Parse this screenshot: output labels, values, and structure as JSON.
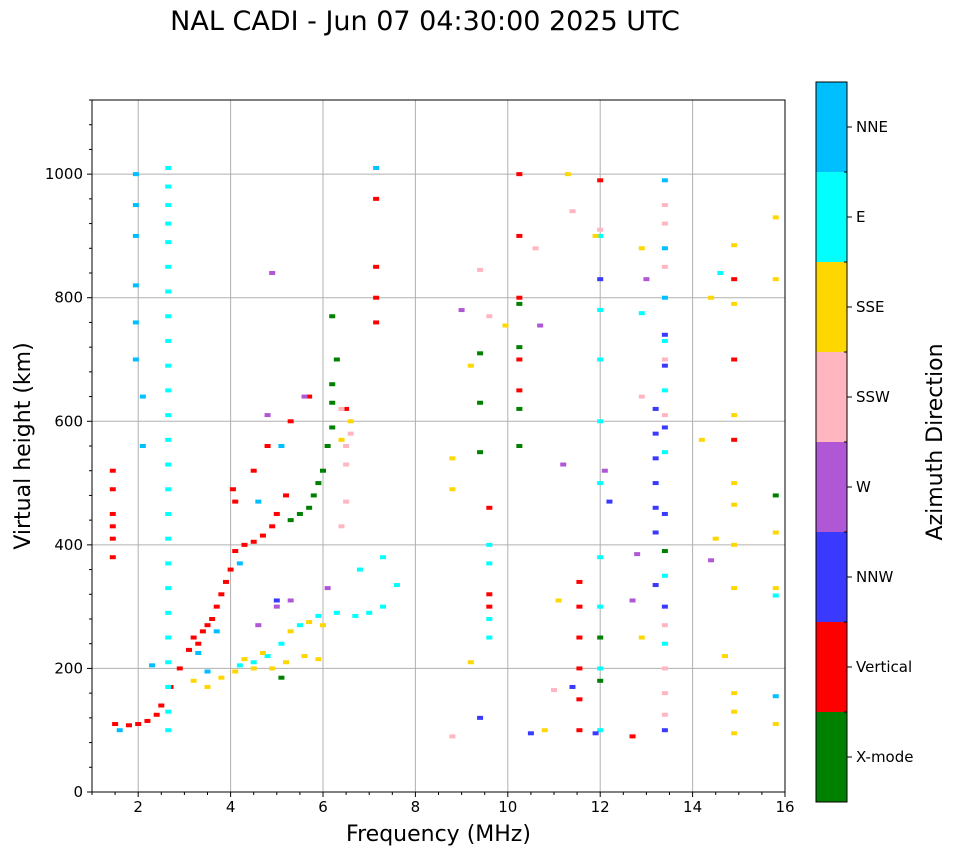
{
  "chart_data": {
    "type": "scatter",
    "title": "NAL CADI - Jun 07 04:30:00 2025 UTC",
    "xlabel": "Frequency (MHz)",
    "ylabel": "Virtual height (km)",
    "xlim": [
      1,
      16
    ],
    "ylim": [
      0,
      1120
    ],
    "xticks": [
      2,
      4,
      6,
      8,
      10,
      12,
      14,
      16
    ],
    "yticks": [
      0,
      200,
      400,
      600,
      800,
      1000
    ],
    "grid": true,
    "colorbar": {
      "label": "Azimuth Direction",
      "categories": [
        {
          "name": "X-mode",
          "color": "#008000"
        },
        {
          "name": "Vertical",
          "color": "#ff0000"
        },
        {
          "name": "NNW",
          "color": "#3a3aff"
        },
        {
          "name": "W",
          "color": "#b057d6"
        },
        {
          "name": "SSW",
          "color": "#ffb6c1"
        },
        {
          "name": "SSE",
          "color": "#ffd700"
        },
        {
          "name": "E",
          "color": "#00ffff"
        },
        {
          "name": "NNE",
          "color": "#00bfff"
        }
      ]
    },
    "series": [
      {
        "name": "Vertical",
        "points": [
          [
            1.45,
            520
          ],
          [
            1.45,
            490
          ],
          [
            1.45,
            450
          ],
          [
            1.45,
            430
          ],
          [
            1.45,
            410
          ],
          [
            1.45,
            380
          ],
          [
            1.5,
            110
          ],
          [
            1.8,
            108
          ],
          [
            2.0,
            110
          ],
          [
            2.2,
            115
          ],
          [
            2.4,
            125
          ],
          [
            2.5,
            140
          ],
          [
            2.7,
            170
          ],
          [
            2.9,
            200
          ],
          [
            3.1,
            230
          ],
          [
            3.2,
            250
          ],
          [
            3.3,
            240
          ],
          [
            3.4,
            260
          ],
          [
            3.5,
            270
          ],
          [
            3.6,
            280
          ],
          [
            3.7,
            300
          ],
          [
            3.8,
            320
          ],
          [
            3.9,
            340
          ],
          [
            4.0,
            360
          ],
          [
            4.1,
            390
          ],
          [
            4.3,
            400
          ],
          [
            4.5,
            405
          ],
          [
            4.7,
            415
          ],
          [
            4.9,
            430
          ],
          [
            5.0,
            450
          ],
          [
            5.2,
            480
          ],
          [
            4.05,
            490
          ],
          [
            4.1,
            470
          ],
          [
            4.5,
            520
          ],
          [
            4.8,
            560
          ],
          [
            5.3,
            600
          ],
          [
            5.7,
            640
          ],
          [
            6.5,
            620
          ],
          [
            7.15,
            960
          ],
          [
            7.15,
            850
          ],
          [
            7.15,
            800
          ],
          [
            7.15,
            760
          ],
          [
            9.6,
            460
          ],
          [
            9.6,
            320
          ],
          [
            9.6,
            300
          ],
          [
            10.25,
            1000
          ],
          [
            10.25,
            900
          ],
          [
            10.25,
            800
          ],
          [
            10.25,
            700
          ],
          [
            10.25,
            650
          ],
          [
            11.55,
            340
          ],
          [
            11.55,
            300
          ],
          [
            11.55,
            250
          ],
          [
            11.55,
            200
          ],
          [
            11.55,
            150
          ],
          [
            11.55,
            100
          ],
          [
            12.7,
            90
          ],
          [
            14.9,
            830
          ],
          [
            14.9,
            700
          ],
          [
            14.9,
            570
          ],
          [
            12,
            990
          ]
        ]
      },
      {
        "name": "NNE",
        "points": [
          [
            1.95,
            1000
          ],
          [
            1.95,
            950
          ],
          [
            1.95,
            900
          ],
          [
            1.95,
            820
          ],
          [
            1.95,
            760
          ],
          [
            1.95,
            700
          ],
          [
            2.1,
            640
          ],
          [
            2.1,
            560
          ],
          [
            1.6,
            100
          ],
          [
            2.3,
            205
          ],
          [
            3.3,
            225
          ],
          [
            3.5,
            195
          ],
          [
            3.7,
            260
          ],
          [
            4.2,
            370
          ],
          [
            4.6,
            470
          ],
          [
            5.1,
            560
          ],
          [
            7.15,
            1010
          ],
          [
            13.4,
            990
          ],
          [
            13.4,
            880
          ],
          [
            13.4,
            800
          ],
          [
            15.8,
            155
          ]
        ]
      },
      {
        "name": "E",
        "points": [
          [
            2.65,
            1010
          ],
          [
            2.65,
            980
          ],
          [
            2.65,
            950
          ],
          [
            2.65,
            920
          ],
          [
            2.65,
            890
          ],
          [
            2.65,
            850
          ],
          [
            2.65,
            810
          ],
          [
            2.65,
            770
          ],
          [
            2.65,
            730
          ],
          [
            2.65,
            690
          ],
          [
            2.65,
            650
          ],
          [
            2.65,
            610
          ],
          [
            2.65,
            570
          ],
          [
            2.65,
            530
          ],
          [
            2.65,
            490
          ],
          [
            2.65,
            450
          ],
          [
            2.65,
            410
          ],
          [
            2.65,
            370
          ],
          [
            2.65,
            330
          ],
          [
            2.65,
            290
          ],
          [
            2.65,
            250
          ],
          [
            2.65,
            210
          ],
          [
            2.65,
            170
          ],
          [
            2.65,
            130
          ],
          [
            2.65,
            100
          ],
          [
            4.2,
            205
          ],
          [
            4.5,
            210
          ],
          [
            4.8,
            220
          ],
          [
            5.1,
            240
          ],
          [
            5.5,
            270
          ],
          [
            5.9,
            285
          ],
          [
            6.3,
            290
          ],
          [
            6.7,
            285
          ],
          [
            7.0,
            290
          ],
          [
            7.3,
            300
          ],
          [
            7.3,
            380
          ],
          [
            6.8,
            360
          ],
          [
            7.6,
            335
          ],
          [
            9.6,
            400
          ],
          [
            9.6,
            370
          ],
          [
            9.6,
            280
          ],
          [
            9.6,
            250
          ],
          [
            12.0,
            900
          ],
          [
            12.0,
            780
          ],
          [
            12.0,
            700
          ],
          [
            12.0,
            600
          ],
          [
            12.0,
            500
          ],
          [
            12.0,
            380
          ],
          [
            12.0,
            300
          ],
          [
            12.0,
            200
          ],
          [
            12.0,
            100
          ],
          [
            12.9,
            775
          ],
          [
            13.4,
            730
          ],
          [
            13.4,
            650
          ],
          [
            13.4,
            550
          ],
          [
            13.4,
            350
          ],
          [
            13.4,
            240
          ],
          [
            14.6,
            840
          ],
          [
            15.8,
            318
          ]
        ]
      },
      {
        "name": "SSE",
        "points": [
          [
            3.2,
            180
          ],
          [
            3.5,
            170
          ],
          [
            3.8,
            185
          ],
          [
            4.1,
            195
          ],
          [
            4.5,
            200
          ],
          [
            4.9,
            200
          ],
          [
            5.2,
            210
          ],
          [
            5.6,
            220
          ],
          [
            5.9,
            215
          ],
          [
            4.3,
            215
          ],
          [
            4.7,
            225
          ],
          [
            5.3,
            260
          ],
          [
            5.7,
            275
          ],
          [
            6.0,
            270
          ],
          [
            6.4,
            570
          ],
          [
            6.6,
            600
          ],
          [
            9.2,
            690
          ],
          [
            9.2,
            210
          ],
          [
            8.8,
            540
          ],
          [
            8.8,
            490
          ],
          [
            9.95,
            755
          ],
          [
            10.8,
            100
          ],
          [
            11.1,
            310
          ],
          [
            11.3,
            1000
          ],
          [
            11.9,
            900
          ],
          [
            12.9,
            880
          ],
          [
            12.9,
            250
          ],
          [
            14.4,
            800
          ],
          [
            14.2,
            570
          ],
          [
            14.5,
            410
          ],
          [
            14.7,
            220
          ],
          [
            14.9,
            885
          ],
          [
            14.9,
            790
          ],
          [
            14.9,
            610
          ],
          [
            14.9,
            500
          ],
          [
            14.9,
            465
          ],
          [
            14.9,
            400
          ],
          [
            14.9,
            330
          ],
          [
            14.9,
            160
          ],
          [
            14.9,
            130
          ],
          [
            14.9,
            95
          ],
          [
            15.8,
            930
          ],
          [
            15.8,
            830
          ],
          [
            15.8,
            420
          ],
          [
            15.8,
            330
          ],
          [
            15.8,
            110
          ]
        ]
      },
      {
        "name": "NNW",
        "points": [
          [
            5.0,
            310
          ],
          [
            9.4,
            120
          ],
          [
            10.5,
            95
          ],
          [
            11.4,
            170
          ],
          [
            11.9,
            95
          ],
          [
            13.2,
            620
          ],
          [
            13.2,
            580
          ],
          [
            13.2,
            540
          ],
          [
            13.2,
            500
          ],
          [
            13.2,
            460
          ],
          [
            13.2,
            420
          ],
          [
            13.4,
            740
          ],
          [
            13.4,
            690
          ],
          [
            13.4,
            590
          ],
          [
            13.4,
            450
          ],
          [
            13.4,
            300
          ],
          [
            13.4,
            100
          ],
          [
            12.0,
            830
          ],
          [
            12.2,
            470
          ],
          [
            13.2,
            335
          ]
        ]
      },
      {
        "name": "W",
        "points": [
          [
            5.0,
            300
          ],
          [
            5.3,
            310
          ],
          [
            6.1,
            330
          ],
          [
            4.9,
            840
          ],
          [
            4.6,
            270
          ],
          [
            5.6,
            640
          ],
          [
            4.8,
            610
          ],
          [
            10.7,
            755
          ],
          [
            11.2,
            530
          ],
          [
            12.1,
            520
          ],
          [
            12.7,
            310
          ],
          [
            12.8,
            385
          ],
          [
            13.0,
            830
          ],
          [
            14.4,
            375
          ],
          [
            9.0,
            780
          ]
        ]
      },
      {
        "name": "SSW",
        "points": [
          [
            6.5,
            560
          ],
          [
            6.5,
            530
          ],
          [
            6.6,
            580
          ],
          [
            6.4,
            620
          ],
          [
            6.5,
            470
          ],
          [
            6.4,
            430
          ],
          [
            9.4,
            845
          ],
          [
            9.6,
            770
          ],
          [
            10.6,
            880
          ],
          [
            11.4,
            940
          ],
          [
            11.0,
            165
          ],
          [
            12.0,
            910
          ],
          [
            12.9,
            640
          ],
          [
            13.4,
            950
          ],
          [
            13.4,
            920
          ],
          [
            13.4,
            850
          ],
          [
            13.4,
            700
          ],
          [
            13.4,
            610
          ],
          [
            13.4,
            270
          ],
          [
            13.4,
            200
          ],
          [
            13.4,
            160
          ],
          [
            13.4,
            125
          ],
          [
            8.8,
            90
          ]
        ]
      },
      {
        "name": "X-mode",
        "points": [
          [
            5.3,
            440
          ],
          [
            5.5,
            450
          ],
          [
            5.7,
            460
          ],
          [
            5.8,
            480
          ],
          [
            5.9,
            500
          ],
          [
            6.0,
            520
          ],
          [
            6.1,
            560
          ],
          [
            6.2,
            590
          ],
          [
            6.2,
            630
          ],
          [
            6.2,
            660
          ],
          [
            6.3,
            700
          ],
          [
            6.2,
            770
          ],
          [
            5.1,
            185
          ],
          [
            9.4,
            710
          ],
          [
            9.4,
            630
          ],
          [
            9.4,
            550
          ],
          [
            10.25,
            790
          ],
          [
            10.25,
            720
          ],
          [
            10.25,
            620
          ],
          [
            10.25,
            560
          ],
          [
            12.0,
            180
          ],
          [
            12.0,
            250
          ],
          [
            13.4,
            390
          ],
          [
            15.8,
            480
          ]
        ]
      }
    ]
  }
}
